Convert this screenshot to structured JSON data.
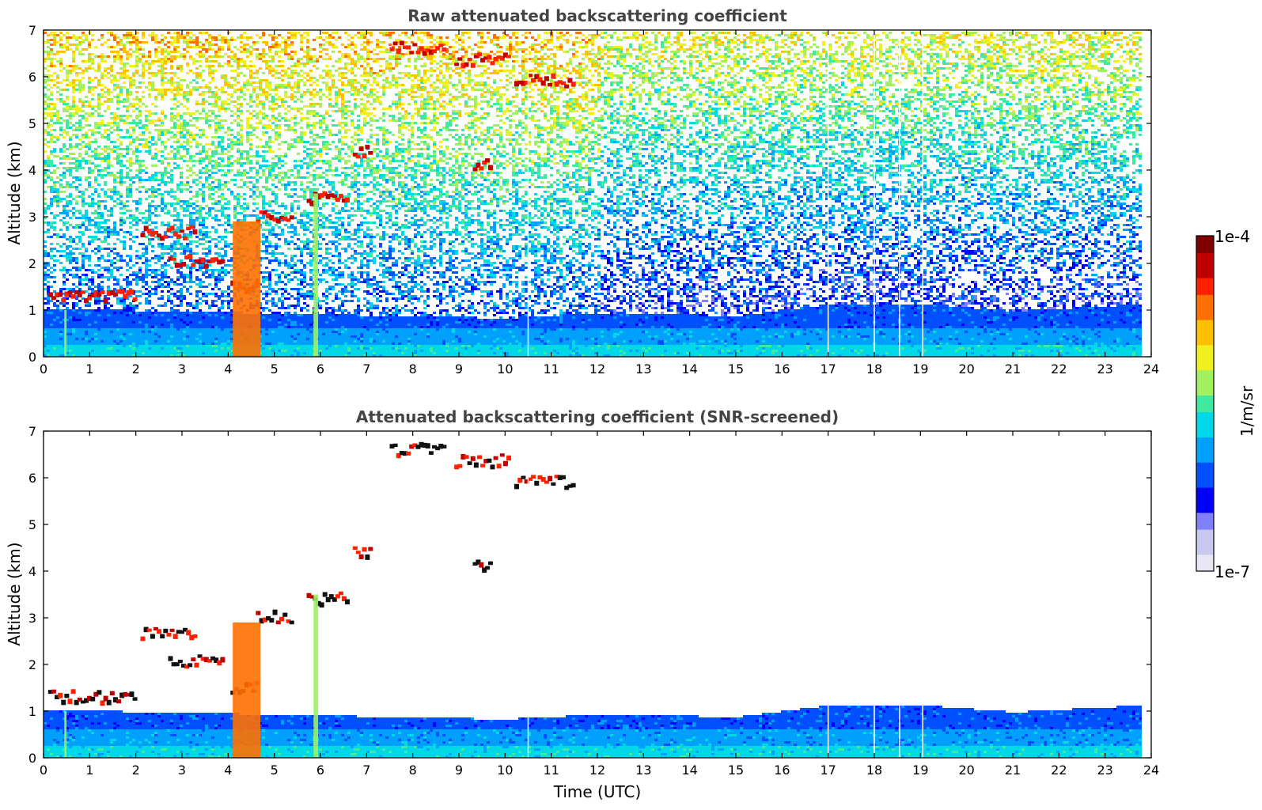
{
  "chart_data": [
    {
      "type": "heatmap",
      "title": "Raw attenuated backscattering coefficient",
      "xlabel": "",
      "ylabel": "Altitude (km)",
      "xlim": [
        0,
        24
      ],
      "ylim": [
        0,
        7
      ],
      "xticks": [
        "0",
        "1",
        "2",
        "3",
        "4",
        "5",
        "6",
        "7",
        "8",
        "9",
        "10",
        "11",
        "12",
        "13",
        "14",
        "15",
        "16",
        "17",
        "18",
        "19",
        "20",
        "21",
        "22",
        "23",
        "24"
      ],
      "yticks": [
        "0",
        "1",
        "2",
        "3",
        "4",
        "5",
        "6",
        "7"
      ],
      "boundary_layer_top_km": [
        [
          0,
          1.0
        ],
        [
          5,
          0.9
        ],
        [
          10,
          0.8
        ],
        [
          12,
          0.9
        ],
        [
          15,
          0.85
        ],
        [
          17,
          1.1
        ],
        [
          19,
          1.1
        ],
        [
          21,
          0.95
        ],
        [
          23.85,
          1.1
        ]
      ],
      "cloud_features": [
        {
          "t0": 0.1,
          "t1": 2.0,
          "z": 1.3,
          "intensity": 0.0001
        },
        {
          "t0": 2.1,
          "t1": 3.3,
          "z": 2.65,
          "intensity": 0.0001
        },
        {
          "t0": 2.7,
          "t1": 3.9,
          "z": 2.05,
          "intensity": 0.0001
        },
        {
          "t0": 4.05,
          "t1": 4.65,
          "z": 1.5,
          "intensity": 0.0001
        },
        {
          "t0": 4.6,
          "t1": 5.4,
          "z": 3.0,
          "intensity": 0.0001
        },
        {
          "t0": 5.7,
          "t1": 6.6,
          "z": 3.4,
          "intensity": 0.0001
        },
        {
          "t0": 6.7,
          "t1": 7.1,
          "z": 4.38,
          "intensity": 0.0001
        },
        {
          "t0": 9.3,
          "t1": 9.7,
          "z": 4.08,
          "intensity": 0.0001
        },
        {
          "t0": 7.5,
          "t1": 8.7,
          "z": 6.6,
          "intensity": 0.0001
        },
        {
          "t0": 8.9,
          "t1": 10.1,
          "z": 6.35,
          "intensity": 0.0001
        },
        {
          "t0": 10.2,
          "t1": 11.5,
          "z": 5.9,
          "intensity": 0.0001
        }
      ]
    },
    {
      "type": "heatmap",
      "title": "Attenuated backscattering coefficient (SNR-screened)",
      "xlabel": "Time (UTC)",
      "ylabel": "Altitude (km)",
      "xlim": [
        0,
        24
      ],
      "ylim": [
        0,
        7
      ],
      "xticks": [
        "0",
        "1",
        "2",
        "3",
        "4",
        "5",
        "6",
        "7",
        "8",
        "9",
        "10",
        "11",
        "12",
        "13",
        "14",
        "15",
        "16",
        "17",
        "18",
        "19",
        "20",
        "21",
        "22",
        "23",
        "24"
      ],
      "yticks": [
        "0",
        "1",
        "2",
        "3",
        "4",
        "5",
        "6",
        "7"
      ]
    }
  ],
  "colorbar": {
    "min_label": "1e-7",
    "max_label": "1e-4",
    "unit": "1/m/sr",
    "scale": "log",
    "colors": [
      "#e6e6f5",
      "#c8c8f0",
      "#8080ff",
      "#0000ff",
      "#0050ff",
      "#00a0ff",
      "#00d8e8",
      "#40e8a0",
      "#a0f060",
      "#f0f020",
      "#ffc000",
      "#ff7000",
      "#ff2000",
      "#c00000",
      "#800000"
    ]
  }
}
